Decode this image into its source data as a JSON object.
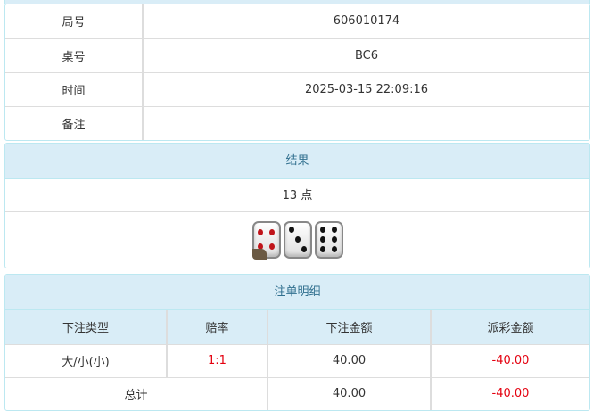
{
  "info": [
    {
      "label": "局号",
      "value": "606010174"
    },
    {
      "label": "桌号",
      "value": "BC6"
    },
    {
      "label": "时间",
      "value": "2025-03-15 22:09:16"
    },
    {
      "label": "备注",
      "value": ""
    }
  ],
  "result": {
    "title": "结果",
    "points": "13 点",
    "dice": [
      4,
      3,
      6
    ],
    "badge": "i"
  },
  "bets": {
    "title": "注单明细",
    "headers": [
      "下注类型",
      "赔率",
      "下注金额",
      "派彩金额"
    ],
    "rows": [
      {
        "type": "大/小(小)",
        "odds": "1:1",
        "amount": "40.00",
        "payout": "-40.00"
      }
    ],
    "total": {
      "label": "总计",
      "amount": "40.00",
      "payout": "-40.00"
    }
  },
  "colors": {
    "header_bg": "#d9edf7",
    "header_text": "#31708f",
    "negative": "#e4000f"
  }
}
